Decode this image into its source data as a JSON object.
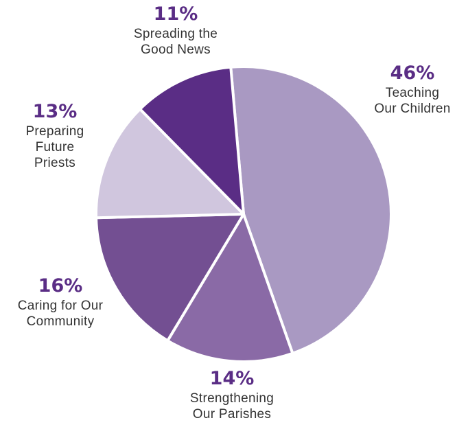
{
  "chart_data": {
    "type": "pie",
    "title": "",
    "slices": [
      {
        "name": "Teaching Our Children",
        "line1": "Teaching",
        "line2": "Our Children",
        "line3": "",
        "value": 46,
        "value_label": "46%",
        "color": "#a999c2"
      },
      {
        "name": "Strengthening Our Parishes",
        "line1": "Strengthening",
        "line2": "Our Parishes",
        "line3": "",
        "value": 14,
        "value_label": "14%",
        "color": "#8a6aa6"
      },
      {
        "name": "Caring for Our Community",
        "line1": "Caring for Our",
        "line2": "Community",
        "line3": "",
        "value": 16,
        "value_label": "16%",
        "color": "#734f92"
      },
      {
        "name": "Preparing Future Priests",
        "line1": "Preparing",
        "line2": "Future",
        "line3": "Priests",
        "value": 13,
        "value_label": "13%",
        "color": "#d0c6de"
      },
      {
        "name": "Spreading the Good News",
        "line1": "Spreading the",
        "line2": "Good News",
        "line3": "",
        "value": 11,
        "value_label": "11%",
        "color": "#5a2d85"
      }
    ],
    "label_color": "#5a2d85",
    "text_color": "#333333",
    "separator_color": "#ffffff"
  }
}
